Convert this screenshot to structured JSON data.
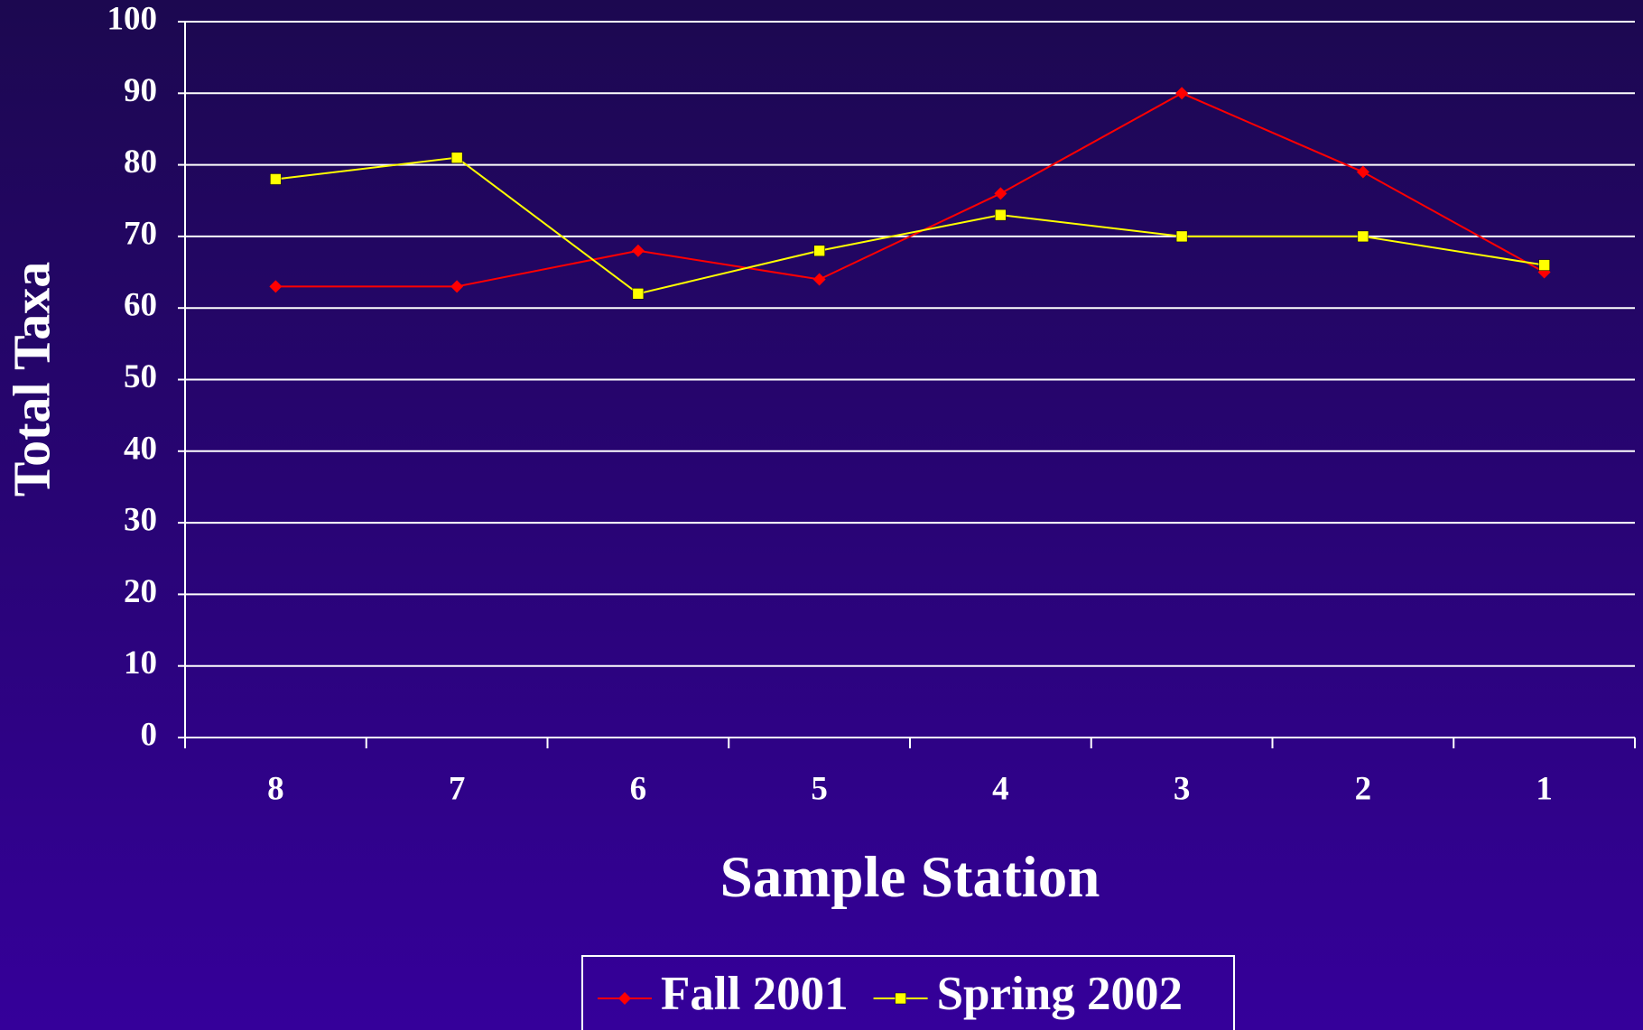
{
  "chart_data": {
    "type": "line",
    "x_label": "Sample Station",
    "y_label": "Total Taxa",
    "categories": [
      "8",
      "7",
      "6",
      "5",
      "4",
      "3",
      "2",
      "1"
    ],
    "series": [
      {
        "name": "Fall 2001",
        "color": "#ff0000",
        "marker": "diamond",
        "values": [
          63,
          63,
          68,
          64,
          76,
          90,
          79,
          65
        ]
      },
      {
        "name": "Spring 2002",
        "color": "#ffff00",
        "marker": "square",
        "values": [
          78,
          81,
          62,
          68,
          73,
          70,
          70,
          66
        ]
      }
    ],
    "ylim": [
      0,
      100
    ],
    "yticks": [
      0,
      10,
      20,
      30,
      40,
      50,
      60,
      70,
      80,
      90,
      100
    ],
    "grid": true
  }
}
